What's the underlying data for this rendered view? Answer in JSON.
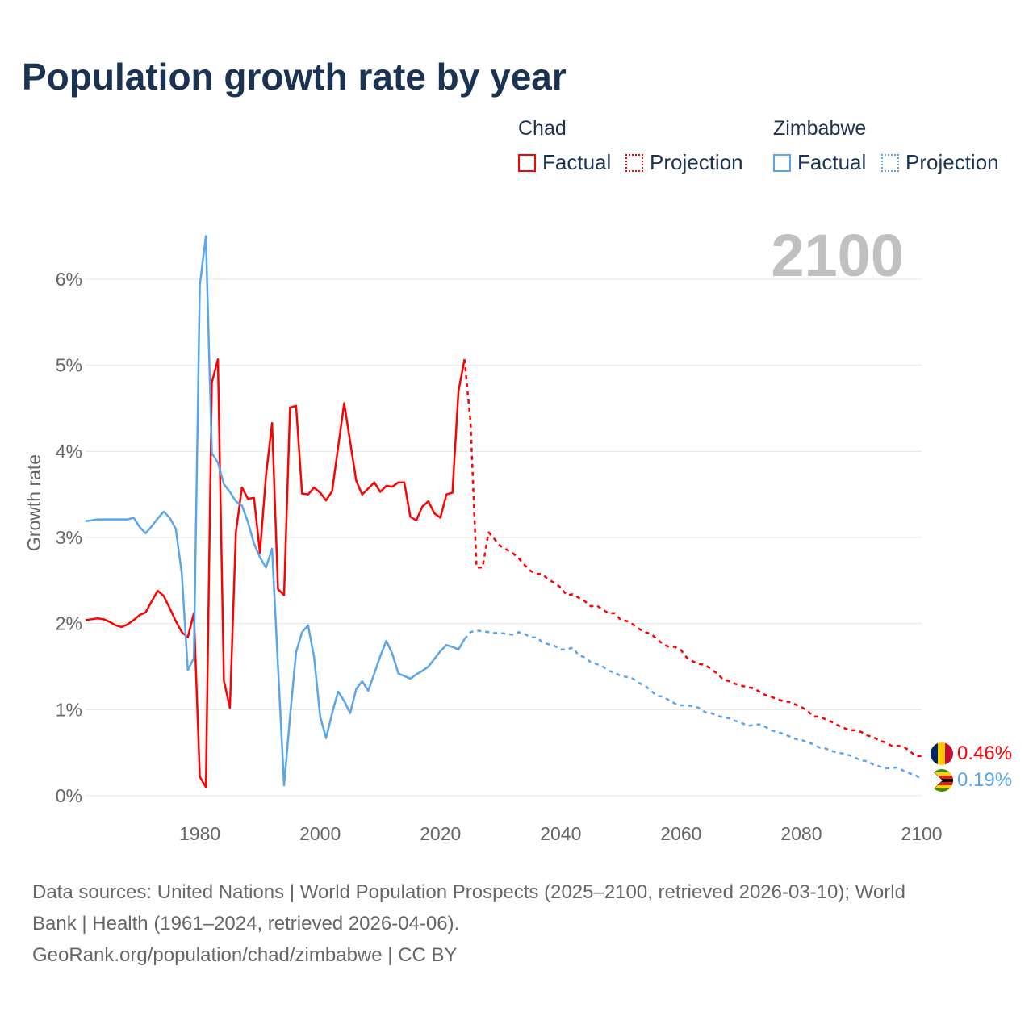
{
  "title": "Population growth rate by year",
  "legend": {
    "chad": {
      "name": "Chad",
      "factual": "Factual",
      "projection": "Projection"
    },
    "zimbabwe": {
      "name": "Zimbabwe",
      "factual": "Factual",
      "projection": "Projection"
    }
  },
  "year_display": "2100",
  "end_labels": {
    "chad": "0.46%",
    "zimbabwe": "0.19%"
  },
  "colors": {
    "chad": "#ff0000",
    "zimbabwe": "#5aa5ec",
    "title": "#1b3352",
    "grid": "#e6e6e6",
    "year": "#c0c0c0"
  },
  "footer": {
    "sources_line1": "Data sources: United Nations | World Population Prospects (2025–2100, retrieved 2026-03-10); World",
    "sources_line2": "Bank | Health (1961–2024, retrieved 2026-04-06).",
    "attribution": "GeoRank.org/population/chad/zimbabwe | CC BY"
  },
  "chart_data": {
    "type": "line",
    "title": "Population growth rate by year",
    "xlabel": "",
    "ylabel": "Growth rate",
    "xlim": [
      1961,
      2100
    ],
    "ylim": [
      0,
      6.5
    ],
    "x_ticks": [
      1980,
      2000,
      2020,
      2040,
      2060,
      2080,
      2100
    ],
    "x_tick_labels": [
      "1980",
      "2000",
      "2020",
      "2040",
      "2060",
      "2080",
      "2100"
    ],
    "y_ticks": [
      0,
      1,
      2,
      3,
      4,
      5,
      6
    ],
    "y_tick_labels": [
      "0%",
      "1%",
      "2%",
      "3%",
      "4%",
      "5%",
      "6%"
    ],
    "grid": true,
    "legend_position": "top-right",
    "series": [
      {
        "name": "Chad Factual",
        "country": "chad",
        "style": "solid",
        "x_start": 1961,
        "values": [
          2.04,
          2.05,
          2.06,
          2.05,
          2.02,
          1.98,
          1.96,
          1.99,
          2.04,
          2.1,
          2.13,
          2.26,
          2.38,
          2.32,
          2.18,
          2.03,
          1.9,
          1.84,
          2.12,
          0.22,
          0.1,
          4.8,
          5.07,
          1.34,
          1.02,
          3.06,
          3.58,
          3.45,
          3.46,
          2.82,
          3.72,
          4.33,
          2.4,
          2.33,
          4.51,
          4.53,
          3.51,
          3.5,
          3.58,
          3.52,
          3.43,
          3.54,
          4.05,
          4.56,
          4.11,
          3.66,
          3.5,
          3.57,
          3.64,
          3.53,
          3.6,
          3.59,
          3.64,
          3.64,
          3.24,
          3.2,
          3.36,
          3.42,
          3.28,
          3.23,
          3.5,
          3.52,
          4.7,
          5.07
        ]
      },
      {
        "name": "Chad Projection",
        "country": "chad",
        "style": "dotted",
        "x_start": 2024,
        "values": [
          5.07,
          4.35,
          2.65,
          2.65,
          3.06,
          2.98,
          2.9,
          2.86,
          2.82,
          2.76,
          2.68,
          2.61,
          2.58,
          2.57,
          2.51,
          2.47,
          2.42,
          2.33,
          2.34,
          2.3,
          2.26,
          2.2,
          2.21,
          2.16,
          2.12,
          2.12,
          2.04,
          2.03,
          1.99,
          1.94,
          1.9,
          1.88,
          1.82,
          1.76,
          1.73,
          1.73,
          1.69,
          1.6,
          1.56,
          1.53,
          1.52,
          1.47,
          1.42,
          1.35,
          1.33,
          1.3,
          1.28,
          1.26,
          1.25,
          1.21,
          1.17,
          1.15,
          1.12,
          1.1,
          1.09,
          1.06,
          1.03,
          0.99,
          0.92,
          0.92,
          0.89,
          0.86,
          0.82,
          0.79,
          0.76,
          0.76,
          0.74,
          0.7,
          0.68,
          0.64,
          0.62,
          0.58,
          0.58,
          0.57,
          0.52,
          0.46,
          0.46
        ]
      },
      {
        "name": "Zimbabwe Factual",
        "country": "zimbabwe",
        "style": "solid",
        "x_start": 1961,
        "values": [
          3.19,
          3.2,
          3.21,
          3.21,
          3.21,
          3.21,
          3.21,
          3.21,
          3.23,
          3.12,
          3.05,
          3.13,
          3.22,
          3.3,
          3.23,
          3.1,
          2.58,
          1.46,
          1.6,
          5.93,
          6.5,
          3.98,
          3.87,
          3.62,
          3.53,
          3.42,
          3.37,
          3.18,
          2.93,
          2.77,
          2.65,
          2.87,
          1.5,
          0.12,
          0.92,
          1.67,
          1.9,
          1.98,
          1.61,
          0.92,
          0.67,
          0.96,
          1.21,
          1.1,
          0.96,
          1.24,
          1.33,
          1.22,
          1.42,
          1.62,
          1.8,
          1.65,
          1.42,
          1.39,
          1.36,
          1.41,
          1.45,
          1.5,
          1.59,
          1.68,
          1.75,
          1.73,
          1.7,
          1.82
        ]
      },
      {
        "name": "Zimbabwe Projection",
        "country": "zimbabwe",
        "style": "dotted",
        "x_start": 2024,
        "values": [
          1.82,
          1.9,
          1.92,
          1.91,
          1.9,
          1.89,
          1.89,
          1.88,
          1.87,
          1.9,
          1.88,
          1.84,
          1.84,
          1.78,
          1.76,
          1.74,
          1.7,
          1.7,
          1.72,
          1.63,
          1.61,
          1.55,
          1.53,
          1.5,
          1.45,
          1.43,
          1.39,
          1.38,
          1.36,
          1.31,
          1.28,
          1.22,
          1.16,
          1.15,
          1.11,
          1.07,
          1.05,
          1.05,
          1.04,
          1.02,
          0.97,
          0.96,
          0.93,
          0.91,
          0.9,
          0.87,
          0.85,
          0.81,
          0.82,
          0.83,
          0.8,
          0.76,
          0.74,
          0.72,
          0.69,
          0.66,
          0.65,
          0.62,
          0.6,
          0.56,
          0.55,
          0.52,
          0.5,
          0.49,
          0.47,
          0.44,
          0.41,
          0.4,
          0.36,
          0.34,
          0.32,
          0.32,
          0.33,
          0.29,
          0.26,
          0.24,
          0.19
        ]
      }
    ]
  }
}
